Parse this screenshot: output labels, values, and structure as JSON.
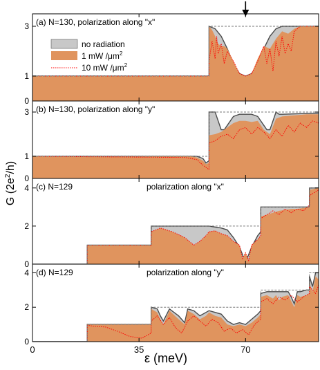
{
  "figure": {
    "ylabel": "G (2e²/h)",
    "ylabel_main": "G (2e",
    "ylabel_sup": "2",
    "ylabel_end": "/h)",
    "xlabel": "ε (meV)",
    "arrow_at_x": 70
  },
  "legend": {
    "no_radiation": "no radiation",
    "mw1_label": "1 mW /μm",
    "mw10_label": "10 mW /μm",
    "sup": "2"
  },
  "colors": {
    "no_radiation": "#c8c8c8",
    "no_radiation_edge": "#4a4a4a",
    "mw1": "#e0945e",
    "mw10": "#ff0000",
    "dashed": "#777777"
  },
  "chart_data": [
    {
      "type": "area",
      "panel": "(a)",
      "left_label": "N=130, polarization along \"x\"",
      "right_label": "",
      "xlim": [
        0,
        94
      ],
      "ylim": [
        0,
        3.5
      ],
      "yticks": [
        "0",
        "1",
        "3"
      ],
      "clean_x": [
        0,
        58,
        58,
        94
      ],
      "clean_y": [
        1,
        1,
        3,
        3
      ],
      "series": [
        {
          "name": "no radiation",
          "x": [
            0,
            58,
            58,
            60,
            62,
            64,
            66,
            68,
            70,
            72,
            74,
            76,
            78,
            80,
            82,
            84,
            86,
            88,
            94
          ],
          "y": [
            1,
            1,
            3,
            2.9,
            2.6,
            2.1,
            1.5,
            1.1,
            1.0,
            1.1,
            1.5,
            2.1,
            2.6,
            2.9,
            3,
            3,
            3,
            3,
            3
          ]
        },
        {
          "name": "1 mW /μm2",
          "x": [
            0,
            58,
            58,
            59,
            60,
            61,
            62,
            63,
            64,
            66,
            68,
            70,
            72,
            74,
            76,
            78,
            80,
            82,
            84,
            86,
            88,
            94
          ],
          "y": [
            1,
            1,
            3,
            2.85,
            2.6,
            2.3,
            2.2,
            2.2,
            2.1,
            1.6,
            1.1,
            1.0,
            1.1,
            1.7,
            2.2,
            2.1,
            2.5,
            2.8,
            2.7,
            2.9,
            3,
            3
          ]
        },
        {
          "name": "10 mW /μm2",
          "x": [
            0,
            58,
            58,
            59,
            60,
            60.5,
            61,
            62,
            63,
            64,
            66,
            68,
            70,
            72,
            74,
            76,
            77,
            78,
            79,
            80,
            81,
            82,
            83,
            84,
            85,
            86,
            88,
            94
          ],
          "y": [
            1,
            1,
            1.6,
            2.4,
            1.7,
            2.6,
            1.9,
            2.3,
            1.5,
            2.0,
            1.6,
            1.1,
            1.0,
            1.1,
            1.6,
            2.2,
            1.5,
            2.1,
            1.2,
            2.4,
            1.8,
            2.6,
            1.9,
            2.3,
            2.0,
            2.8,
            3,
            3
          ]
        }
      ]
    },
    {
      "type": "area",
      "panel": "(b)",
      "left_label": "N=130, polarization along \"y\"",
      "right_label": "",
      "xlim": [
        0,
        94
      ],
      "ylim": [
        0,
        3.5
      ],
      "yticks": [
        "0",
        "1",
        "3"
      ],
      "clean_x": [
        0,
        58,
        58,
        94
      ],
      "clean_y": [
        1,
        1,
        3,
        3
      ],
      "series": [
        {
          "name": "no radiation",
          "x": [
            0,
            54,
            56,
            57,
            58,
            58,
            60,
            61,
            62,
            63,
            64,
            66,
            68,
            70,
            72,
            74,
            76,
            77,
            78,
            79,
            80,
            81,
            82,
            94
          ],
          "y": [
            1,
            1,
            0.9,
            0.7,
            0.8,
            3,
            3,
            2.6,
            2.2,
            2.2,
            2.4,
            2.8,
            2.9,
            2.9,
            2.9,
            2.8,
            2.4,
            2.2,
            2.2,
            2.6,
            3,
            2.9,
            2.9,
            2.95
          ]
        },
        {
          "name": "1 mW /μm2",
          "x": [
            0,
            52,
            54,
            56,
            57,
            58,
            58,
            60,
            62,
            64,
            66,
            68,
            70,
            72,
            74,
            76,
            78,
            80,
            82,
            86,
            90,
            94
          ],
          "y": [
            1,
            1,
            0.95,
            0.8,
            0.65,
            0.7,
            1.95,
            2.0,
            2.1,
            2.3,
            2.5,
            2.6,
            2.6,
            2.55,
            2.6,
            2.2,
            2.0,
            2.7,
            2.8,
            2.85,
            2.9,
            2.9
          ]
        },
        {
          "name": "10 mW /μm2",
          "x": [
            0,
            50,
            54,
            56,
            58,
            58,
            60,
            62,
            64,
            66,
            68,
            70,
            72,
            74,
            76,
            78,
            80,
            82,
            84,
            86,
            88,
            90,
            92,
            94
          ],
          "y": [
            1,
            0.95,
            0.85,
            0.6,
            0.4,
            1.6,
            1.7,
            1.9,
            2.0,
            1.8,
            2.2,
            2.3,
            2.0,
            2.3,
            2.1,
            1.8,
            2.2,
            1.9,
            2.4,
            2.1,
            2.5,
            2.3,
            2.6,
            2.5
          ]
        }
      ]
    },
    {
      "type": "area",
      "panel": "(c)",
      "left_label": "N=129",
      "right_label": "polarization along \"x\"",
      "xlim": [
        0,
        94
      ],
      "ylim": [
        0,
        4.5
      ],
      "yticks": [
        "0",
        "2",
        "4"
      ],
      "clean_x": [
        0,
        18,
        18,
        39,
        39,
        75,
        75,
        91,
        91,
        94
      ],
      "clean_y": [
        0,
        0,
        1,
        1,
        2,
        2,
        3,
        3,
        4,
        4
      ],
      "series": [
        {
          "name": "no radiation",
          "x": [
            0,
            18,
            18,
            39,
            39,
            58,
            60,
            62,
            64,
            66,
            68,
            70,
            72,
            74,
            75,
            75,
            91,
            91,
            94
          ],
          "y": [
            0,
            0,
            1,
            1,
            2,
            2,
            1.95,
            1.9,
            1.8,
            1.4,
            0.9,
            0.1,
            0.9,
            1.5,
            1.7,
            3,
            3,
            4,
            4
          ]
        },
        {
          "name": "1 mW /μm2",
          "x": [
            0,
            18,
            18,
            39,
            39,
            42,
            46,
            50,
            53,
            55,
            57,
            58,
            60,
            62,
            64,
            66,
            68,
            69,
            70,
            71,
            72,
            74,
            75,
            75,
            77,
            79,
            81,
            83,
            85,
            87,
            89,
            91,
            91,
            94
          ],
          "y": [
            0,
            0,
            1,
            1,
            1.7,
            1.9,
            1.7,
            1.4,
            1.0,
            1.2,
            1.5,
            1.7,
            1.75,
            1.6,
            1.5,
            1.2,
            1.0,
            0.3,
            0.6,
            0.2,
            1.0,
            1.3,
            1.5,
            2.5,
            2.6,
            2.7,
            2.8,
            2.85,
            2.9,
            2.9,
            2.95,
            3,
            3.9,
            4
          ]
        },
        {
          "name": "10 mW /μm2",
          "x": [
            0,
            18,
            18,
            39,
            39,
            42,
            46,
            50,
            53,
            55,
            57,
            58,
            60,
            62,
            64,
            66,
            68,
            69,
            70,
            71,
            72,
            74,
            75,
            75,
            77,
            79,
            81,
            83,
            85,
            87,
            89,
            91,
            91,
            94
          ],
          "y": [
            0,
            0,
            1,
            1,
            1.7,
            1.9,
            1.7,
            1.4,
            1.0,
            1.2,
            1.5,
            1.7,
            1.75,
            1.6,
            1.5,
            1.2,
            1.0,
            0.3,
            0.6,
            0.2,
            1.0,
            1.3,
            1.5,
            2.4,
            2.6,
            2.8,
            2.6,
            2.9,
            2.7,
            2.9,
            2.8,
            3.1,
            3.6,
            3.9
          ]
        }
      ]
    },
    {
      "type": "area",
      "panel": "(d)",
      "left_label": "N=129",
      "right_label": "polarization along \"y\"",
      "xlim": [
        0,
        94
      ],
      "ylim": [
        0,
        4.5
      ],
      "yticks": [
        "0",
        "2",
        "4"
      ],
      "clean_x": [
        0,
        18,
        18,
        39,
        39,
        75,
        75,
        91,
        91,
        94
      ],
      "clean_y": [
        0,
        0,
        1,
        1,
        2,
        2,
        3,
        3,
        4,
        4
      ],
      "series": [
        {
          "name": "no radiation",
          "x": [
            0,
            18,
            18,
            39,
            39,
            41,
            42,
            43,
            45,
            48,
            50,
            51,
            53,
            55,
            57,
            58,
            60,
            62,
            64,
            66,
            68,
            70,
            72,
            74,
            75,
            75,
            77,
            80,
            82,
            84,
            85,
            86,
            87,
            88,
            90,
            91,
            91,
            92,
            93,
            94
          ],
          "y": [
            0,
            0,
            1,
            1,
            2,
            1.9,
            1.5,
            1.2,
            1.9,
            1.5,
            1.1,
            1.9,
            1.8,
            1.5,
            1.7,
            1.8,
            1.7,
            1.6,
            1.2,
            1.0,
            1.1,
            1.0,
            1.3,
            1.6,
            1.8,
            2.8,
            2.9,
            2.9,
            2.9,
            2.9,
            2.6,
            2.2,
            2.9,
            2.9,
            3,
            3,
            3.8,
            3.2,
            4,
            4
          ]
        },
        {
          "name": "1 mW /μm2",
          "x": [
            0,
            18,
            18,
            39,
            39,
            41,
            42,
            43,
            45,
            48,
            50,
            51,
            53,
            55,
            57,
            58,
            60,
            62,
            64,
            66,
            68,
            70,
            72,
            74,
            75,
            75,
            77,
            79,
            80,
            81,
            82,
            84,
            86,
            87,
            88,
            90,
            91,
            91,
            92,
            93,
            94
          ],
          "y": [
            0,
            0,
            1,
            1,
            1.9,
            1.7,
            1.3,
            1.0,
            1.8,
            1.3,
            1.0,
            1.8,
            1.6,
            1.3,
            1.5,
            1.7,
            1.5,
            1.4,
            1.0,
            0.9,
            1.0,
            0.9,
            1.1,
            1.4,
            1.6,
            2.6,
            2.7,
            2.5,
            2.7,
            2.4,
            2.6,
            2.7,
            2.0,
            2.7,
            2.6,
            2.7,
            2.8,
            3.4,
            2.9,
            3.8,
            3.6
          ]
        },
        {
          "name": "10 mW /μm2",
          "x": [
            0,
            18,
            18,
            20,
            24,
            28,
            32,
            36,
            39,
            39,
            41,
            43,
            45,
            47,
            49,
            51,
            53,
            55,
            57,
            59,
            61,
            63,
            65,
            67,
            69,
            71,
            73,
            75,
            75,
            77,
            79,
            81,
            83,
            85,
            87,
            89,
            91,
            91,
            93,
            94
          ],
          "y": [
            0,
            0,
            0.95,
            0.9,
            0.85,
            0.6,
            0.3,
            0.2,
            0.5,
            1.2,
            1.5,
            1.0,
            1.4,
            0.8,
            0.5,
            1.2,
            1.5,
            1.2,
            0.9,
            1.3,
            1.1,
            0.6,
            0.8,
            0.5,
            0.7,
            0.4,
            1.0,
            1.3,
            2.3,
            2.5,
            2.2,
            2.6,
            2.4,
            2.7,
            2.3,
            2.6,
            2.8,
            3.2,
            2.8,
            3.3
          ]
        }
      ]
    }
  ],
  "x_axis": {
    "ticks": [
      0,
      35,
      70
    ],
    "tick_labels": [
      "0",
      "35",
      "70"
    ]
  }
}
